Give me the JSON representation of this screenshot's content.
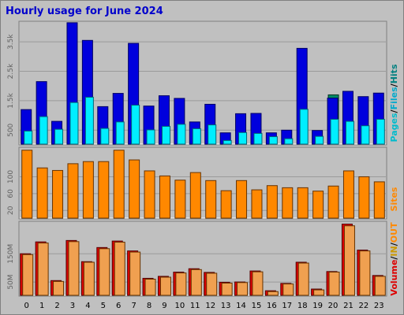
{
  "title": "Hourly usage for June 2024",
  "colors": {
    "background": "#c0c0c0",
    "title": "#0000cc",
    "hits": "#0000dd",
    "hits_edge": "#000066",
    "files": "#00eeff",
    "files_edge": "#006677",
    "pages": "#00bbcc",
    "sites": "#ff8800",
    "sites_edge": "#663300",
    "volume": "#dd0000",
    "vol_in": "#f0a050",
    "vol_out": "#ffaa44",
    "hits_label": "#008080",
    "vol_label_in": "#cc9900",
    "vol_label_out": "#ff8800"
  },
  "chart_data": [
    {
      "type": "bar",
      "name": "Pages / Files / Hits",
      "categories": [
        "0",
        "1",
        "2",
        "3",
        "4",
        "5",
        "6",
        "7",
        "8",
        "9",
        "10",
        "11",
        "12",
        "13",
        "14",
        "15",
        "16",
        "17",
        "18",
        "19",
        "20",
        "21",
        "22",
        "23"
      ],
      "series": [
        {
          "name": "Hits",
          "values": [
            1200,
            2150,
            800,
            4150,
            3550,
            1300,
            1750,
            3450,
            1320,
            1670,
            1580,
            780,
            1380,
            410,
            1060,
            1070,
            410,
            500,
            3280,
            490,
            1590,
            1820,
            1640,
            1760
          ]
        },
        {
          "name": "Files",
          "values": [
            470,
            960,
            530,
            1440,
            1620,
            560,
            780,
            1350,
            510,
            630,
            700,
            550,
            680,
            150,
            420,
            390,
            280,
            210,
            1210,
            290,
            870,
            800,
            650,
            870
          ]
        },
        {
          "name": "Pages",
          "values": [
            0,
            0,
            0,
            0,
            0,
            0,
            0,
            0,
            0,
            0,
            0,
            0,
            0,
            0,
            0,
            0,
            0,
            0,
            0,
            0,
            1700,
            0,
            0,
            0
          ]
        }
      ],
      "ytick_labels": [
        "500",
        "1.5k",
        "2.5k",
        "3.5k"
      ],
      "ytick_values": [
        500,
        1500,
        2500,
        3500
      ],
      "ylim": [
        0,
        4200
      ],
      "legend": {
        "pages": "Pages",
        "files": "Files",
        "hits": "Hits"
      }
    },
    {
      "type": "bar",
      "name": "Sites",
      "categories": [
        "0",
        "1",
        "2",
        "3",
        "4",
        "5",
        "6",
        "7",
        "8",
        "9",
        "10",
        "11",
        "12",
        "13",
        "14",
        "15",
        "16",
        "17",
        "18",
        "19",
        "20",
        "21",
        "22",
        "23"
      ],
      "series": [
        {
          "name": "Sites",
          "values": [
            163,
            121,
            115,
            131,
            136,
            136,
            163,
            140,
            114,
            102,
            92,
            110,
            91,
            67,
            91,
            69,
            79,
            74,
            74,
            66,
            78,
            114,
            100,
            88
          ]
        }
      ],
      "ytick_labels": [
        "20",
        "60",
        "100"
      ],
      "ytick_values": [
        20,
        60,
        100
      ],
      "ylim": [
        0,
        170
      ],
      "legend": {
        "sites": "Sites"
      }
    },
    {
      "type": "bar",
      "name": "Volume IN/OUT",
      "categories": [
        "0",
        "1",
        "2",
        "3",
        "4",
        "5",
        "6",
        "7",
        "8",
        "9",
        "10",
        "11",
        "12",
        "13",
        "14",
        "15",
        "16",
        "17",
        "18",
        "19",
        "20",
        "21",
        "22",
        "23"
      ],
      "series": [
        {
          "name": "Volume",
          "values": [
            150,
            192,
            55,
            197,
            122,
            172,
            195,
            160,
            63,
            70,
            85,
            97,
            84,
            49,
            50,
            89,
            19,
            45,
            120,
            25,
            87,
            255,
            163,
            73
          ]
        },
        {
          "name": "IN/OUT",
          "values": [
            147,
            188,
            52,
            193,
            120,
            168,
            191,
            156,
            60,
            67,
            82,
            94,
            81,
            46,
            48,
            86,
            16,
            43,
            117,
            22,
            85,
            249,
            160,
            70
          ]
        }
      ],
      "ytick_labels": [
        "50M",
        "150M"
      ],
      "ytick_values": [
        50,
        150
      ],
      "ylim": [
        0,
        265
      ],
      "legend": {
        "volume": "Volume",
        "in": "IN",
        "out": "OUT"
      }
    }
  ],
  "legend_text": {
    "pages": "Pages",
    "files": "Files",
    "hits": "Hits",
    "sites": "Sites",
    "volume": "Volume",
    "in": "IN",
    "out": "OUT",
    "sep": "/"
  }
}
